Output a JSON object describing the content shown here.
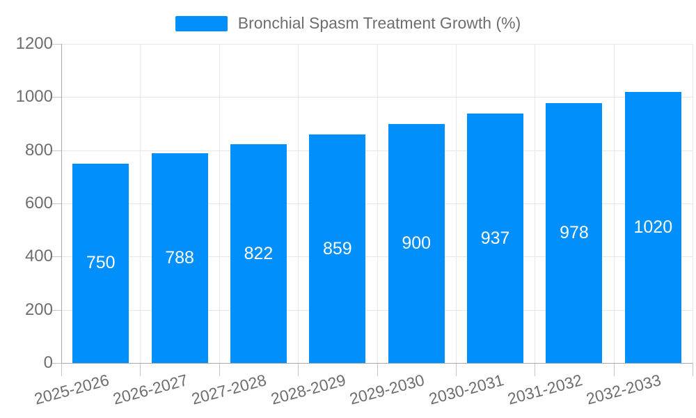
{
  "chart_data": {
    "type": "bar",
    "title": "Bronchial Spasm Treatment Growth (%)",
    "categories": [
      "2025-2026",
      "2026-2027",
      "2027-2028",
      "2028-2029",
      "2029-2030",
      "2030-2031",
      "2031-2032",
      "2032-2033"
    ],
    "series": [
      {
        "name": "Bronchial Spasm Treatment Growth (%)",
        "values": [
          750,
          788,
          822,
          859,
          900,
          937,
          978,
          1020
        ]
      }
    ],
    "xlabel": "",
    "ylabel": "",
    "ylim": [
      0,
      1200
    ],
    "yticks": [
      0,
      200,
      400,
      600,
      800,
      1000,
      1200
    ],
    "grid": true,
    "legend_position": "top-center",
    "colors": {
      "bar": "#008FFB",
      "bar_value_label": "#FFFFFF",
      "axis_text": "#6E6E6E",
      "gridline": "#E7E7E7",
      "axis_line": "#A8A8A8"
    }
  }
}
